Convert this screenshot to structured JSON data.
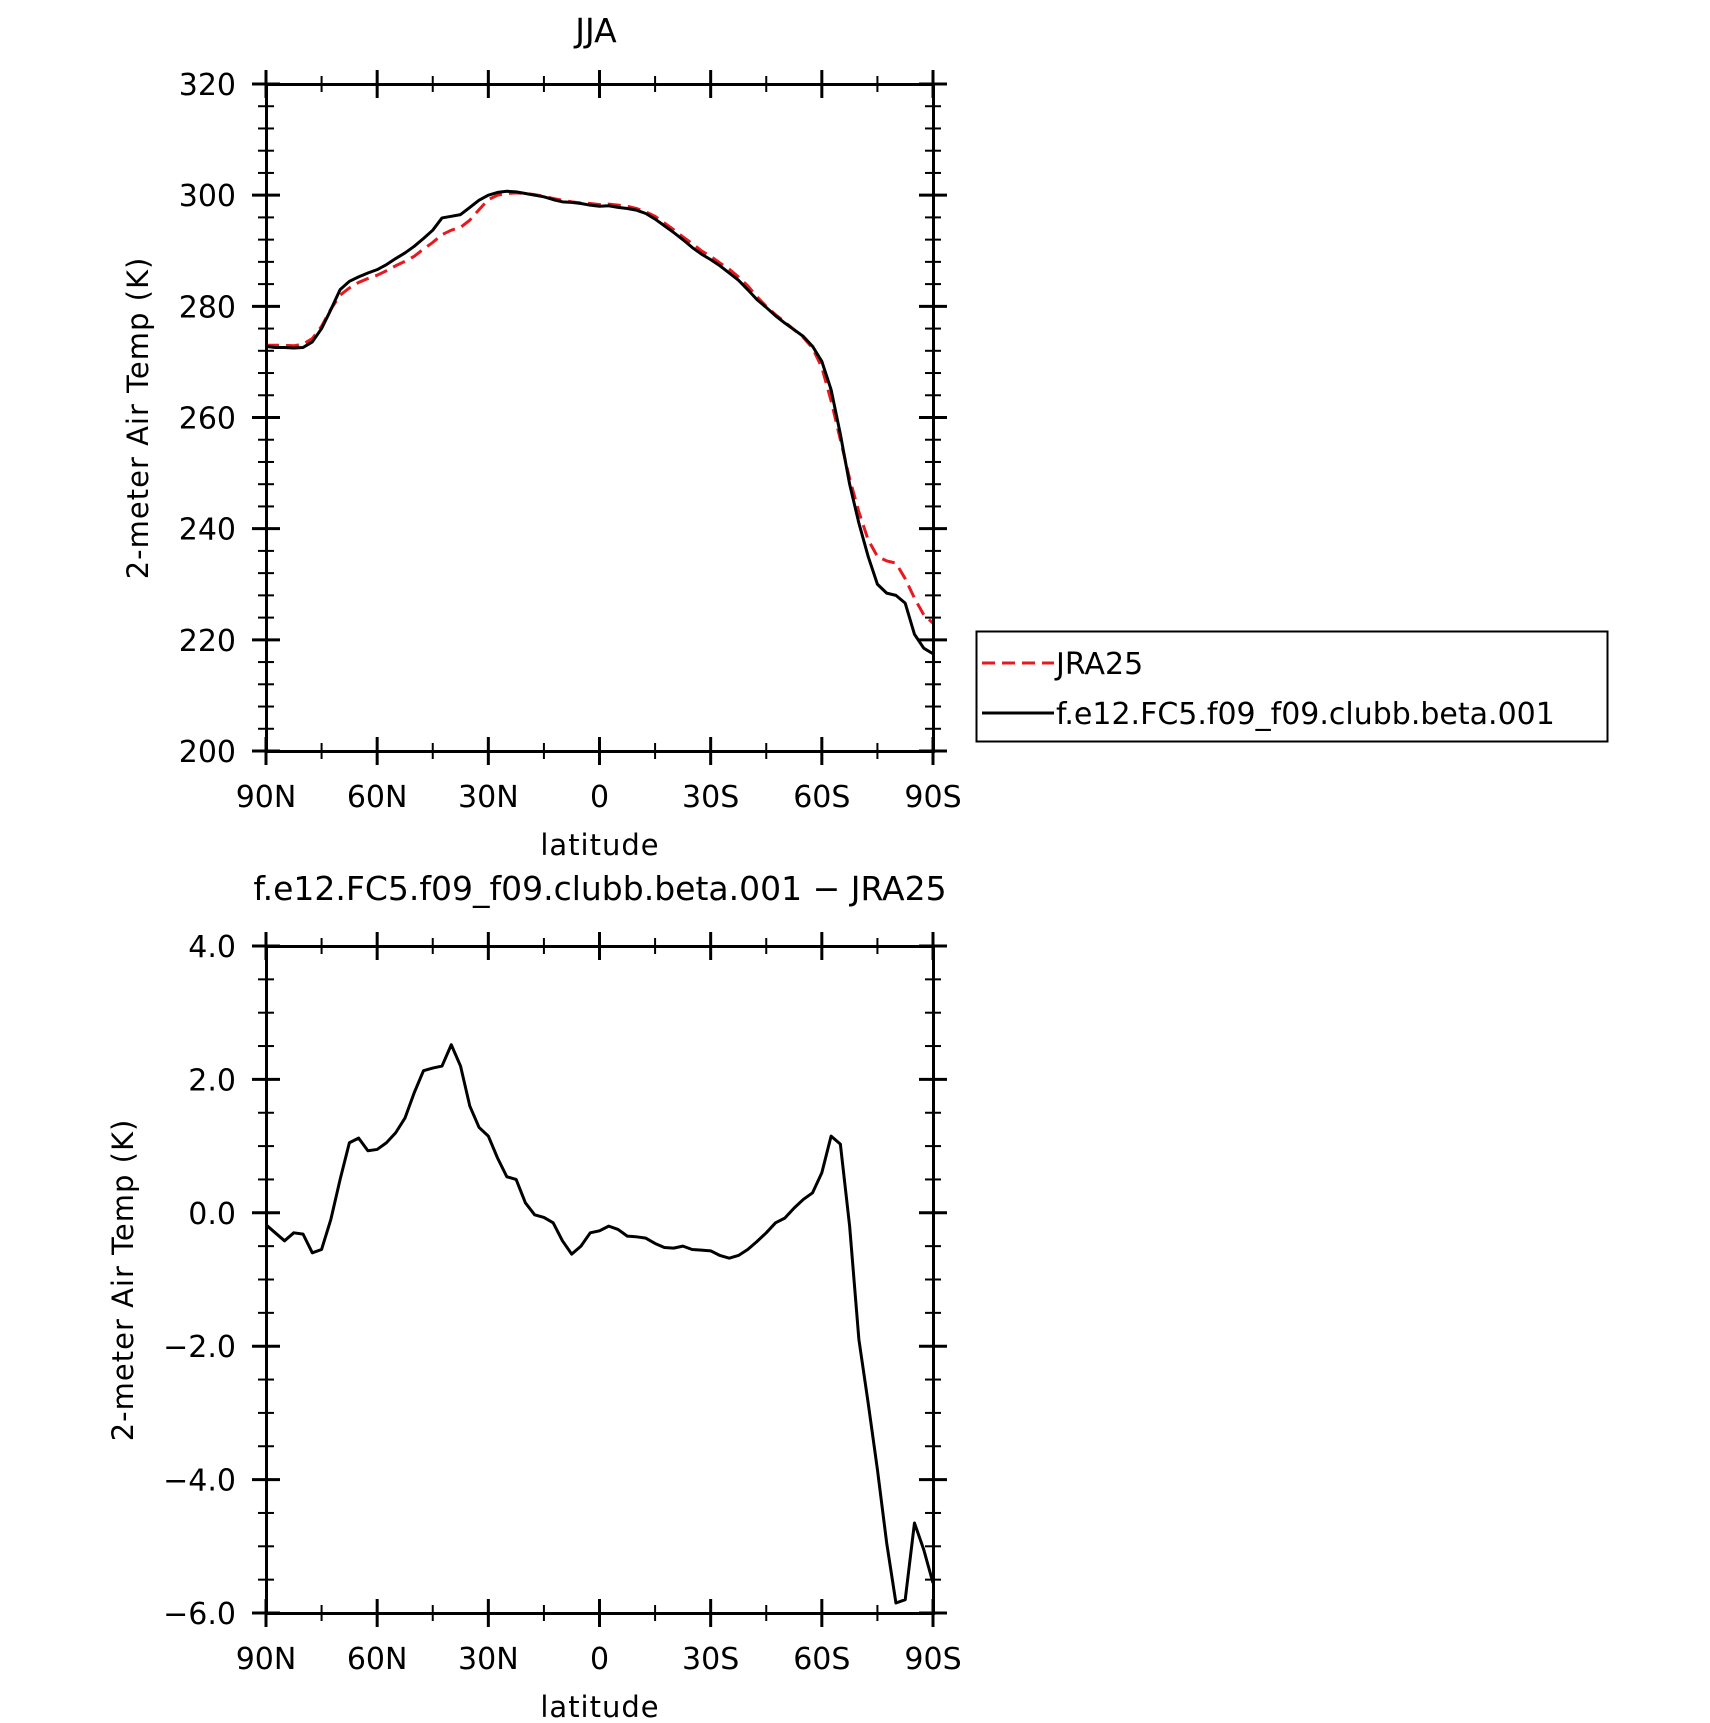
{
  "chart_data": [
    {
      "type": "line",
      "title": "JJA",
      "xlabel": "latitude",
      "ylabel": "2-meter Air Temp (K)",
      "ylim": [
        200,
        320
      ],
      "yticks": [
        "200",
        "220",
        "240",
        "260",
        "280",
        "300",
        "320"
      ],
      "xlim": [
        90,
        -90
      ],
      "xticks": [
        "90N",
        "60N",
        "30N",
        "0",
        "30S",
        "60S",
        "90S"
      ],
      "x": [
        90,
        87.5,
        85,
        82.5,
        80,
        77.5,
        75,
        72.5,
        70,
        67.5,
        65,
        62.5,
        60,
        57.5,
        55,
        52.5,
        50,
        47.5,
        45,
        42.5,
        40,
        37.5,
        35,
        32.5,
        30,
        27.5,
        25,
        22.5,
        20,
        17.5,
        15,
        12.5,
        10,
        7.5,
        5,
        2.5,
        0,
        -2.5,
        -5,
        -7.5,
        -10,
        -12.5,
        -15,
        -17.5,
        -20,
        -22.5,
        -25,
        -27.5,
        -30,
        -32.5,
        -35,
        -37.5,
        -40,
        -42.5,
        -45,
        -47.5,
        -50,
        -52.5,
        -55,
        -57.5,
        -60,
        -62.5,
        -65,
        -67.5,
        -70,
        -72.5,
        -75,
        -77.5,
        -80,
        -82.5,
        -85,
        -87.5,
        -90
      ],
      "series": [
        {
          "name": "JRA25",
          "color": "#e8191e",
          "dash": "dashed",
          "values": [
            273.0,
            273.0,
            273.0,
            272.9,
            273.2,
            274.2,
            276.4,
            279.5,
            282.0,
            283.3,
            284.3,
            285.0,
            285.6,
            286.4,
            287.3,
            288.1,
            289.0,
            290.3,
            291.5,
            292.9,
            293.7,
            294.2,
            295.5,
            297.4,
            299.2,
            300.0,
            300.3,
            300.4,
            300.3,
            300.1,
            299.8,
            299.4,
            299.1,
            298.8,
            298.6,
            298.5,
            298.3,
            298.4,
            298.2,
            298.0,
            297.6,
            297.0,
            296.2,
            295.0,
            293.8,
            292.5,
            291.3,
            290.0,
            289.0,
            287.8,
            286.7,
            285.3,
            283.7,
            281.7,
            280.0,
            278.5,
            277.2,
            275.8,
            274.4,
            272.5,
            269.0,
            263.0,
            256.0,
            249.0,
            243.0,
            238.0,
            235.0,
            234.2,
            233.8,
            231.0,
            227.5,
            224.5,
            223.0
          ]
        },
        {
          "name": "f.e12.FC5.f09_f09.clubb.beta.001",
          "color": "#000000",
          "dash": "solid",
          "values": [
            272.8,
            272.6,
            272.6,
            272.5,
            272.6,
            273.6,
            276.0,
            279.4,
            283.0,
            284.5,
            285.3,
            286.0,
            286.6,
            287.5,
            288.6,
            289.6,
            290.8,
            292.2,
            293.7,
            295.9,
            296.2,
            296.5,
            297.8,
            299.1,
            300.0,
            300.5,
            300.7,
            300.6,
            300.3,
            300.0,
            299.7,
            299.2,
            298.8,
            298.7,
            298.5,
            298.2,
            298.0,
            298.1,
            297.8,
            297.6,
            297.3,
            296.7,
            295.7,
            294.5,
            293.3,
            292.0,
            290.6,
            289.4,
            288.4,
            287.3,
            286.0,
            284.7,
            283.0,
            281.2,
            279.8,
            278.3,
            277.0,
            275.8,
            274.6,
            272.8,
            270.1,
            265.0,
            257.0,
            248.0,
            241.0,
            235.0,
            230.0,
            228.4,
            228.0,
            226.6,
            221.0,
            218.5,
            217.5
          ]
        }
      ],
      "legend": [
        "JRA25",
        "f.e12.FC5.f09_f09.clubb.beta.001"
      ],
      "legend_position": "right"
    },
    {
      "type": "line",
      "title": "f.e12.FC5.f09_f09.clubb.beta.001 − JRA25",
      "xlabel": "latitude",
      "ylabel": "2-meter Air Temp (K)",
      "ylim": [
        -6.0,
        4.0
      ],
      "yticks": [
        "−6.0",
        "−4.0",
        "−2.0",
        "0.0",
        "2.0",
        "4.0"
      ],
      "xlim": [
        90,
        -90
      ],
      "xticks": [
        "90N",
        "60N",
        "30N",
        "0",
        "30S",
        "60S",
        "90S"
      ],
      "x": [
        90,
        87.5,
        85,
        82.5,
        80,
        77.5,
        75,
        72.5,
        70,
        67.5,
        65,
        62.5,
        60,
        57.5,
        55,
        52.5,
        50,
        47.5,
        45,
        42.5,
        40,
        37.5,
        35,
        32.5,
        30,
        27.5,
        25,
        22.5,
        20,
        17.5,
        15,
        12.5,
        10,
        7.5,
        5,
        2.5,
        0,
        -2.5,
        -5,
        -7.5,
        -10,
        -12.5,
        -15,
        -17.5,
        -20,
        -22.5,
        -25,
        -27.5,
        -30,
        -32.5,
        -35,
        -37.5,
        -40,
        -42.5,
        -45,
        -47.5,
        -50,
        -52.5,
        -55,
        -57.5,
        -60,
        -62.5,
        -65,
        -67.5,
        -70,
        -72.5,
        -75,
        -77.5,
        -80,
        -82.5,
        -85,
        -87.5,
        -90
      ],
      "series": [
        {
          "color": "#000000",
          "values": [
            -0.18,
            -0.3,
            -0.42,
            -0.3,
            -0.32,
            -0.6,
            -0.55,
            -0.1,
            0.5,
            1.05,
            1.12,
            0.93,
            0.95,
            1.05,
            1.2,
            1.42,
            1.8,
            2.13,
            2.17,
            2.2,
            2.52,
            2.2,
            1.6,
            1.28,
            1.15,
            0.82,
            0.54,
            0.5,
            0.15,
            -0.03,
            -0.07,
            -0.15,
            -0.42,
            -0.62,
            -0.5,
            -0.3,
            -0.27,
            -0.2,
            -0.25,
            -0.35,
            -0.36,
            -0.38,
            -0.46,
            -0.52,
            -0.53,
            -0.5,
            -0.55,
            -0.56,
            -0.57,
            -0.64,
            -0.68,
            -0.64,
            -0.55,
            -0.43,
            -0.3,
            -0.15,
            -0.08,
            0.07,
            0.2,
            0.3,
            0.6,
            1.15,
            1.03,
            -0.2,
            -1.9,
            -2.85,
            -3.85,
            -4.95,
            -5.85,
            -5.8,
            -4.65,
            -5.05,
            -5.55
          ]
        }
      ]
    }
  ]
}
